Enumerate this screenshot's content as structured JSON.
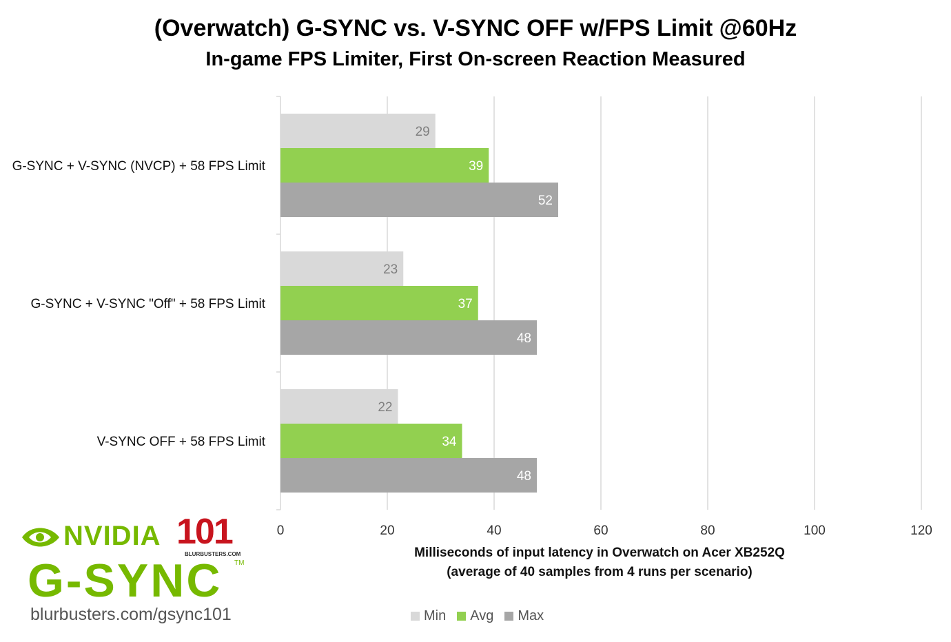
{
  "chart_data": {
    "type": "bar",
    "orientation": "horizontal",
    "title": "(Overwatch) G-SYNC vs. V-SYNC OFF w/FPS Limit @60Hz",
    "subtitle": "In-game FPS Limiter, First On-screen Reaction Measured",
    "categories": [
      "G-SYNC + V-SYNC (NVCP) + 58 FPS Limit",
      "G-SYNC + V-SYNC \"Off\" + 58 FPS Limit",
      "V-SYNC OFF + 58 FPS Limit"
    ],
    "series": [
      {
        "name": "Min",
        "color": "#d9d9d9",
        "label_color": "#7f7f7f",
        "values": [
          29,
          23,
          22
        ]
      },
      {
        "name": "Avg",
        "color": "#92d050",
        "label_color": "#ffffff",
        "values": [
          39,
          37,
          34
        ]
      },
      {
        "name": "Max",
        "color": "#a6a6a6",
        "label_color": "#ffffff",
        "values": [
          52,
          48,
          48
        ]
      }
    ],
    "xlabel_line1": "Milliseconds of input latency in Overwatch on Acer XB252Q",
    "xlabel_line2": "(average of 40 samples from 4 runs per scenario)",
    "xlim": [
      0,
      120
    ],
    "xticks": [
      0,
      20,
      40,
      60,
      80,
      100,
      120
    ],
    "grid": true,
    "legend_position": "bottom",
    "data_labels": true
  },
  "logo": {
    "brand": "NVIDIA",
    "product": "G-SYNC",
    "badge": "101",
    "badge_small": "BLURBUSTERS.COM",
    "tm": "TM",
    "url": "blurbusters.com/gsync101",
    "accent_color": "#76b900",
    "badge_color": "#c8141e"
  }
}
